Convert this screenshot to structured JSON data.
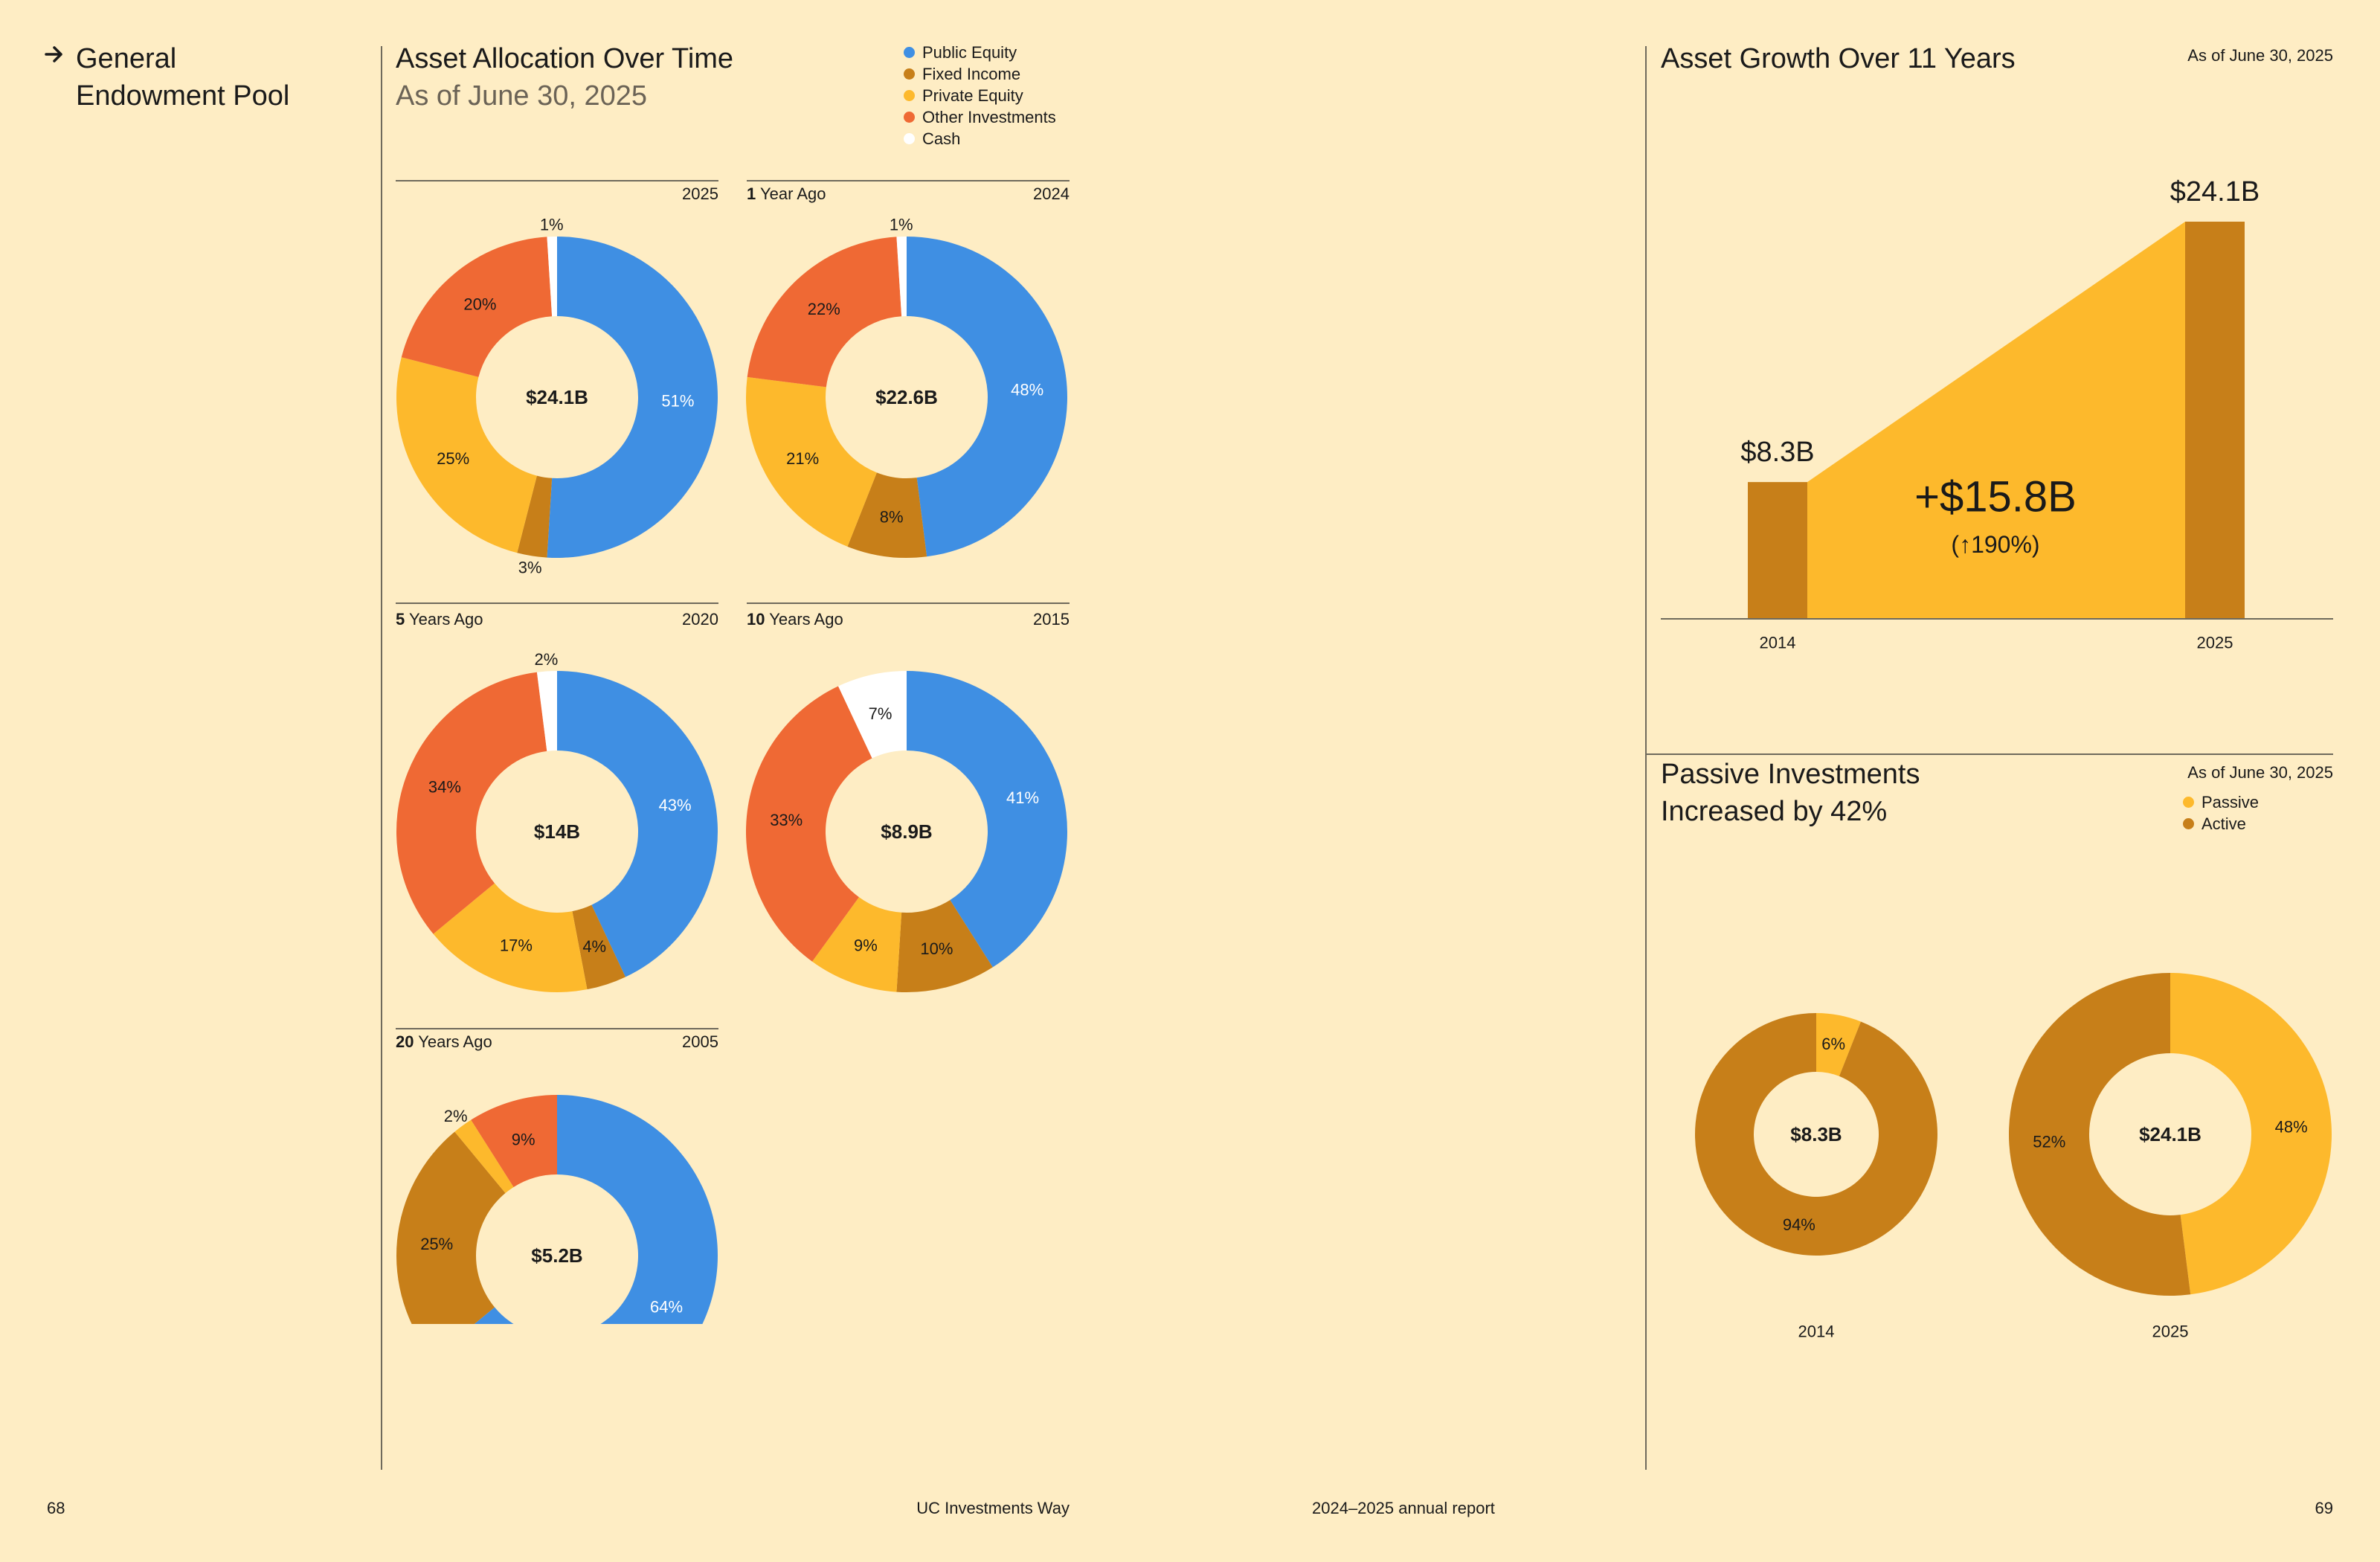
{
  "left_page": {
    "section_title_line1": "General",
    "section_title_line2": "Endowment Pool",
    "title": "Asset Allocation Over Time",
    "subtitle": "As of June 30, 2025"
  },
  "legend": [
    {
      "label": "Public Equity",
      "color": "#3f8fe3"
    },
    {
      "label": "Fixed Income",
      "color": "#c77f19"
    },
    {
      "label": "Private Equity",
      "color": "#fdb92c"
    },
    {
      "label": "Other Investments",
      "color": "#ef6934"
    },
    {
      "label": "Cash",
      "color": "#ffffff"
    }
  ],
  "growth": {
    "title": "Asset Growth Over 11 Years",
    "as_of": "As of June 30, 2025"
  },
  "passive": {
    "title_line1": "Passive Investments",
    "title_line2": "Increased by 42%",
    "as_of": "As of June 30, 2025",
    "legend": [
      {
        "label": "Passive",
        "color": "#fdb92c"
      },
      {
        "label": "Active",
        "color": "#c77f19"
      }
    ]
  },
  "footer": {
    "left_page_number": "68",
    "left_text": "UC Investments Way",
    "right_text": "2024–2025 annual report",
    "right_page_number": "69"
  },
  "chart_data": [
    {
      "type": "pie",
      "variant": "donut",
      "label_prefix": "",
      "label_suffix": "",
      "year": "2025",
      "center": "$24.1B",
      "slices": [
        {
          "category": "Public Equity",
          "value": 51,
          "label": "51%"
        },
        {
          "category": "Fixed Income",
          "value": 3,
          "label": "3%"
        },
        {
          "category": "Private Equity",
          "value": 25,
          "label": "25%"
        },
        {
          "category": "Other Investments",
          "value": 20,
          "label": "20%"
        },
        {
          "category": "Cash",
          "value": 1,
          "label": "1%"
        }
      ]
    },
    {
      "type": "pie",
      "variant": "donut",
      "label_prefix": "1",
      "label_suffix": "Year Ago",
      "year": "2024",
      "center": "$22.6B",
      "slices": [
        {
          "category": "Public Equity",
          "value": 48,
          "label": "48%"
        },
        {
          "category": "Fixed Income",
          "value": 8,
          "label": "8%"
        },
        {
          "category": "Private Equity",
          "value": 21,
          "label": "21%"
        },
        {
          "category": "Other Investments",
          "value": 22,
          "label": "22%"
        },
        {
          "category": "Cash",
          "value": 1,
          "label": "1%"
        }
      ]
    },
    {
      "type": "pie",
      "variant": "donut",
      "label_prefix": "5",
      "label_suffix": "Years Ago",
      "year": "2020",
      "center": "$14B",
      "slices": [
        {
          "category": "Public Equity",
          "value": 43,
          "label": "43%"
        },
        {
          "category": "Fixed Income",
          "value": 4,
          "label": "4%"
        },
        {
          "category": "Private Equity",
          "value": 17,
          "label": "17%"
        },
        {
          "category": "Other Investments",
          "value": 34,
          "label": "34%"
        },
        {
          "category": "Cash",
          "value": 2,
          "label": "2%"
        }
      ]
    },
    {
      "type": "pie",
      "variant": "donut",
      "label_prefix": "10",
      "label_suffix": "Years Ago",
      "year": "2015",
      "center": "$8.9B",
      "slices": [
        {
          "category": "Public Equity",
          "value": 41,
          "label": "41%"
        },
        {
          "category": "Fixed Income",
          "value": 10,
          "label": "10%"
        },
        {
          "category": "Private Equity",
          "value": 9,
          "label": "9%"
        },
        {
          "category": "Other Investments",
          "value": 33,
          "label": "33%"
        },
        {
          "category": "Cash",
          "value": 7,
          "label": "7%"
        }
      ]
    },
    {
      "type": "pie",
      "variant": "donut",
      "label_prefix": "20",
      "label_suffix": "Years Ago",
      "year": "2005",
      "center": "$5.2B",
      "slices": [
        {
          "category": "Public Equity",
          "value": 64,
          "label": "64%"
        },
        {
          "category": "Fixed Income",
          "value": 25,
          "label": "25%"
        },
        {
          "category": "Private Equity",
          "value": 2,
          "label": "2%"
        },
        {
          "category": "Other Investments",
          "value": 9,
          "label": "9%"
        }
      ]
    },
    {
      "type": "bar",
      "variant": "growth-bars-with-area",
      "categories": [
        "2014",
        "2025"
      ],
      "values": [
        8.3,
        24.1
      ],
      "value_labels": [
        "$8.3B",
        "$24.1B"
      ],
      "unit": "B USD",
      "ylim": [
        0,
        24.1
      ],
      "change_label": "+$15.8B",
      "change_percent_label": "(↑190%)",
      "bar_color": "#c77f19",
      "area_color": "#fdb92c",
      "grid": false
    },
    {
      "type": "pie",
      "variant": "donut",
      "year": "2014",
      "center": "$8.3B",
      "slices": [
        {
          "category": "Passive",
          "value": 6,
          "label": "6%"
        },
        {
          "category": "Active",
          "value": 94,
          "label": "94%"
        }
      ]
    },
    {
      "type": "pie",
      "variant": "donut",
      "year": "2025",
      "center": "$24.1B",
      "slices": [
        {
          "category": "Passive",
          "value": 48,
          "label": "48%"
        },
        {
          "category": "Active",
          "value": 52,
          "label": "52%"
        }
      ]
    }
  ]
}
